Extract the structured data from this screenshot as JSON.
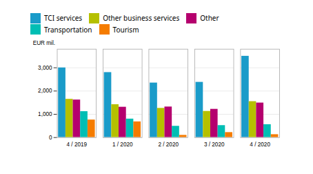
{
  "chart_data": {
    "type": "bar",
    "categories": [
      "4 / 2019",
      "1 / 2020",
      "2 / 2020",
      "3 / 2020",
      "4 / 2020"
    ],
    "series": [
      {
        "name": "TCI services",
        "color": "#1a9bc9",
        "values": [
          3000,
          2800,
          2350,
          2380,
          3500
        ]
      },
      {
        "name": "Other business services",
        "color": "#b5c000",
        "values": [
          1650,
          1420,
          1260,
          1130,
          1550
        ]
      },
      {
        "name": "Other",
        "color": "#b5006e",
        "values": [
          1620,
          1310,
          1320,
          1220,
          1490
        ]
      },
      {
        "name": "Transportation",
        "color": "#00beb4",
        "values": [
          1120,
          800,
          490,
          520,
          560
        ]
      },
      {
        "name": "Tourism",
        "color": "#f57c00",
        "values": [
          760,
          680,
          100,
          220,
          130
        ]
      }
    ],
    "ylabel": "EUR mil.",
    "ylim": [
      0,
      3800
    ],
    "yticks": [
      0,
      {
        "value": 1000,
        "label": "1,000"
      },
      {
        "value": 2000,
        "label": "2,000"
      },
      {
        "value": 3000,
        "label": "3,000"
      }
    ],
    "grid": true,
    "legend": "top"
  }
}
